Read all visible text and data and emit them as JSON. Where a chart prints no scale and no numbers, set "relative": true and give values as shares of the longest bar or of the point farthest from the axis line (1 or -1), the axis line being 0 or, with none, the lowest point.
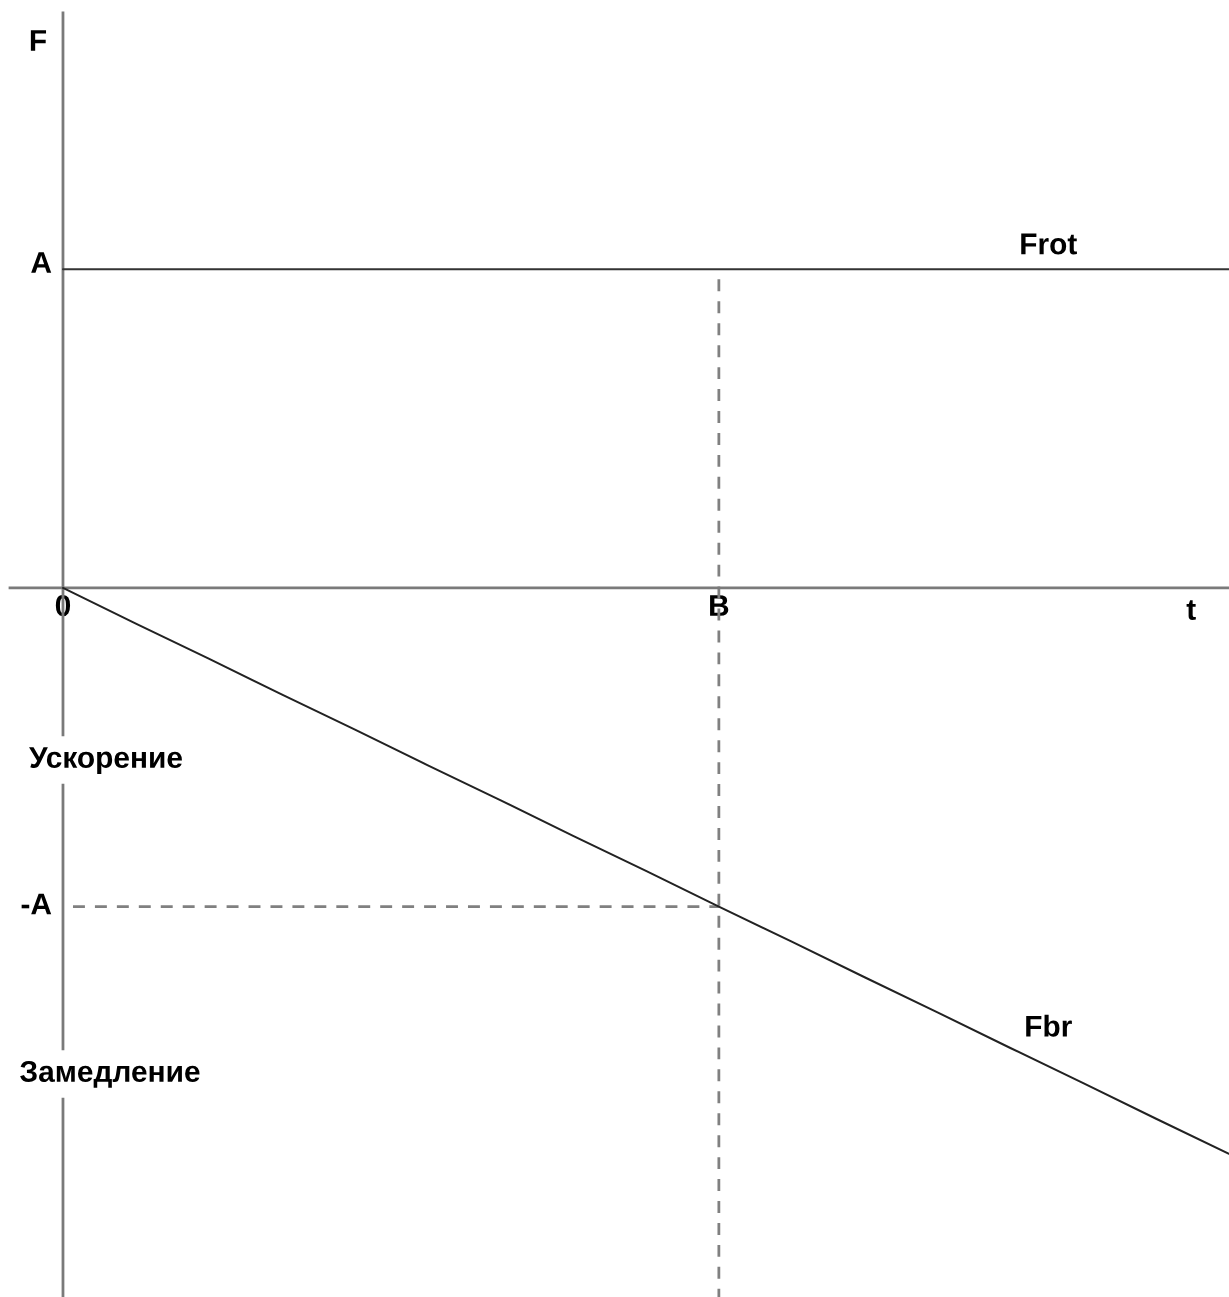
{
  "chart_data": {
    "type": "line",
    "relative": true,
    "tick_labels": "x",
    "xlabel": "t",
    "categories": [
      "0",
      null,
      null,
      null,
      null,
      null,
      null,
      null,
      null,
      "B",
      null,
      null,
      null,
      null,
      null,
      null,
      null
    ],
    "series": [
      {
        "name": "Frot",
        "color": "#333333",
        "values": [
          0.563,
          0.563,
          0.563,
          0.563,
          0.563,
          0.563,
          0.563,
          0.563,
          0.563,
          0.563,
          0.563,
          0.563,
          0.563,
          0.563,
          0.563,
          0.563,
          0.563
        ]
      },
      {
        "name": "Fbr",
        "color": "#222222",
        "values": [
          0,
          -0.063,
          -0.125,
          -0.188,
          -0.25,
          -0.313,
          -0.375,
          -0.438,
          -0.5,
          -0.563,
          -0.625,
          -0.688,
          -0.75,
          -0.813,
          -0.875,
          -0.938,
          -1
        ]
      }
    ],
    "ref_lines": [
      {
        "axis": "x",
        "value": "B",
        "color": "#808080",
        "line_style": "dashed"
      },
      {
        "axis": "y",
        "value": -0.563,
        "label": "-A",
        "color": "#808080",
        "line_style": "dashed"
      }
    ],
    "annotations": [
      "F",
      "A",
      "Ускорение",
      "Замедление"
    ]
  }
}
